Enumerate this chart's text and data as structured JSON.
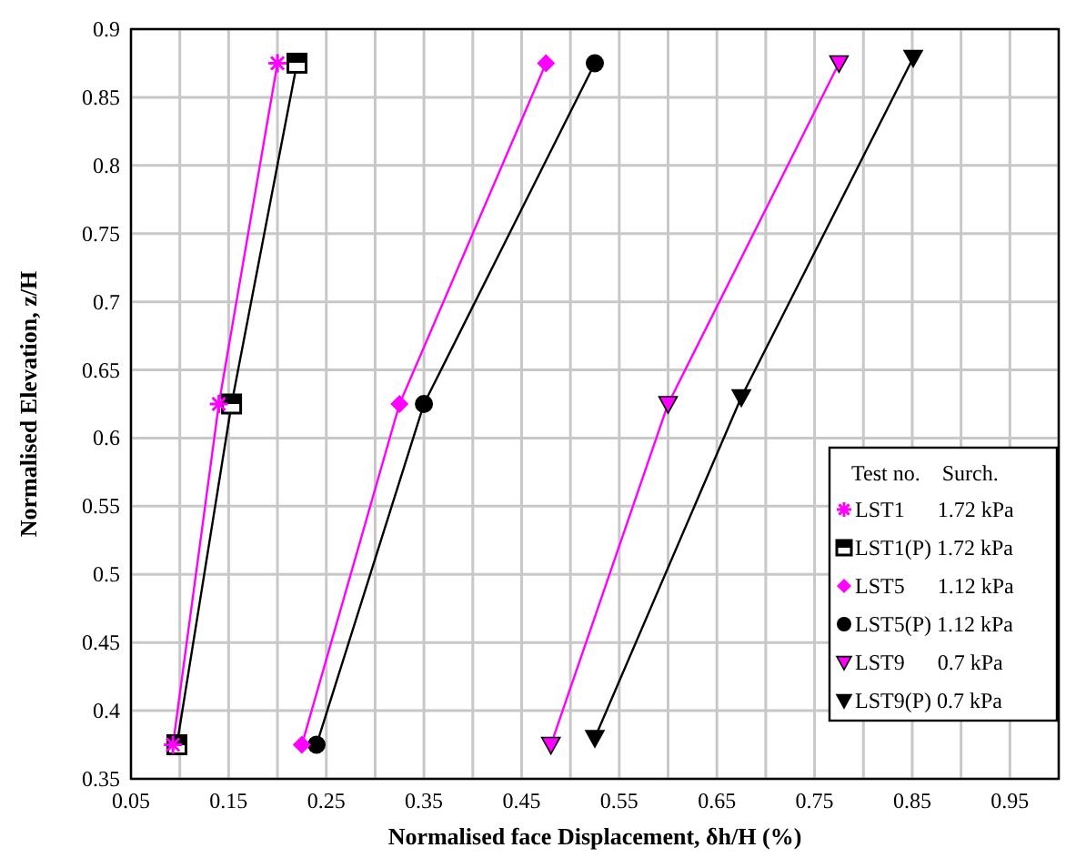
{
  "chart_data": {
    "type": "line",
    "xlabel": "Normalised face Displacement, δh/H (%)",
    "ylabel": "Normalised Elevation, z/H",
    "legend_title": "Test no.    Surch.",
    "legend": "bottom right",
    "grid": true,
    "line_style": "solid",
    "xlim": [
      0.05,
      1.0
    ],
    "xticks": [
      0.05,
      0.15,
      0.25,
      0.35,
      0.45,
      0.55,
      0.65,
      0.75,
      0.85,
      0.95
    ],
    "ylim": [
      0.35,
      0.9
    ],
    "yticks": [
      0.35,
      0.4,
      0.45,
      0.5,
      0.55,
      0.6,
      0.65,
      0.7,
      0.75,
      0.8,
      0.85,
      0.9
    ],
    "series": [
      {
        "name": "LST1      1.72 kPa",
        "color": "#ff00ff",
        "marker": "cross",
        "x": [
          0.093,
          0.14,
          0.2
        ],
        "values": [
          0.375,
          0.625,
          0.875
        ]
      },
      {
        "name": "LST1(P) 1.72 kPa",
        "color": "#000000",
        "marker": "square",
        "x": [
          0.097,
          0.153,
          0.22
        ],
        "values": [
          0.375,
          0.625,
          0.875
        ]
      },
      {
        "name": "LST5      1.12 kPa",
        "color": "#ff00ff",
        "marker": "diamond",
        "x": [
          0.225,
          0.325,
          0.475
        ],
        "values": [
          0.375,
          0.625,
          0.875
        ]
      },
      {
        "name": "LST5(P) 1.12 kPa",
        "color": "#000000",
        "marker": "circle",
        "x": [
          0.24,
          0.35,
          0.525
        ],
        "values": [
          0.375,
          0.625,
          0.875
        ]
      },
      {
        "name": "LST9      0.7 kPa",
        "color": "#ff00ff",
        "marker": "triangle",
        "x": [
          0.48,
          0.6,
          0.775
        ],
        "values": [
          0.375,
          0.625,
          0.875
        ]
      },
      {
        "name": "LST9(P) 0.7 kPa",
        "color": "#000000",
        "marker": "triangle",
        "x": [
          0.525,
          0.675,
          0.851
        ],
        "values": [
          0.38,
          0.63,
          0.879
        ]
      }
    ]
  }
}
